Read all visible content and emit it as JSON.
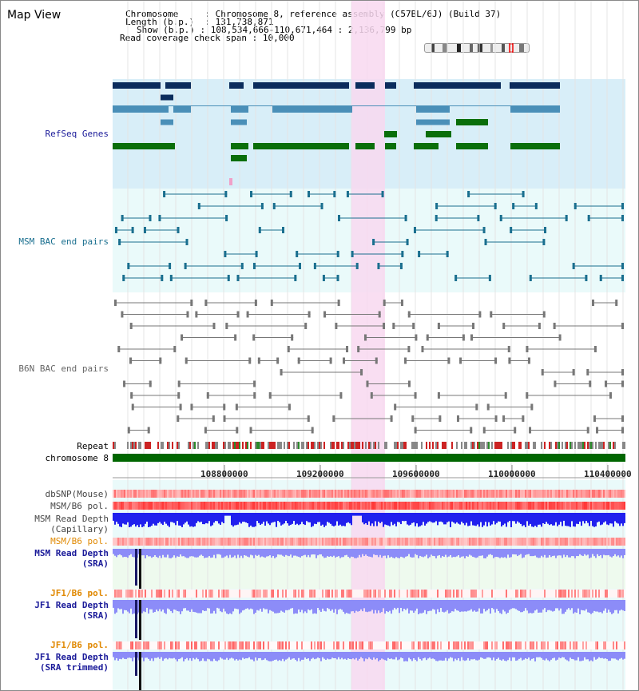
{
  "title": "Map View",
  "info": {
    "chromosome_label": "Chromosome",
    "chromosome_value": "Chromosome 8, reference assembly (C57BL/6J) (Build 37)",
    "length_label": "Length (b.p.)",
    "length_value": "131,738,871",
    "show_label": "Show (b.p.)",
    "show_value": "108,534,666-110,671,464 : 2,136,799 bp",
    "coverage_label": "Read coverage check span",
    "coverage_value": "10,000"
  },
  "tracks": {
    "refseq": "RefSeq Genes",
    "msm_bac": "MSM BAC end pairs",
    "b6n_bac": "B6N BAC end pairs",
    "repeat": "Repeat",
    "chromosome": "chromosome 8",
    "dbsnp": "dbSNP(Mouse)",
    "msm_b6_pol_1": "MSM/B6 pol.",
    "msm_depth_cap_1": "MSM Read Depth",
    "msm_depth_cap_2": "(Capillary)",
    "msm_b6_pol_2": "MSM/B6 pol.",
    "msm_depth_sra_1": "MSM Read Depth",
    "msm_depth_sra_2": "(SRA)",
    "jf1_b6_pol_1": "JF1/B6 pol.",
    "jf1_depth_sra_1": "JF1 Read Depth",
    "jf1_depth_sra_2": "(SRA)",
    "jf1_b6_pol_2": "JF1/B6 pol.",
    "jf1_depth_trim_1": "JF1 Read Depth",
    "jf1_depth_trim_2": "(SRA trimmed)"
  },
  "axis": {
    "ticks": [
      "108800000",
      "109200000",
      "109600000",
      "110000000",
      "110400000"
    ]
  },
  "colors": {
    "refseq_dark": "#0b2c5c",
    "refseq_light": "#4a8fb8",
    "refseq_green": "#0a6e0a",
    "msm_bac": "#1a6f8f",
    "b6n_bac": "#777777",
    "highlight": "#f8d8f0",
    "depth_blue": "#2020ee",
    "depth_lavender": "#8c8cf8",
    "label_navy": "#1a1a99",
    "label_teal": "#1a6f8f",
    "label_orange": "#e08800"
  }
}
